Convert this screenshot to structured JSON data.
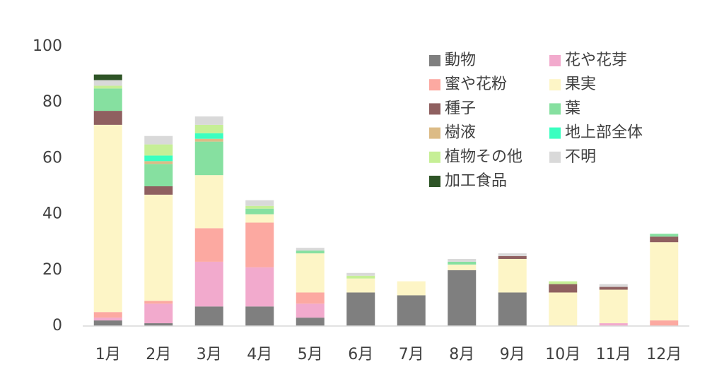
{
  "chart_data": {
    "type": "stacked_bar",
    "categories": [
      "1月",
      "2月",
      "3月",
      "4月",
      "5月",
      "6月",
      "7月",
      "8月",
      "9月",
      "10月",
      "11月",
      "12月"
    ],
    "series": [
      {
        "name": "動物",
        "color": "#7f7f7f",
        "values": [
          2,
          1,
          7,
          7,
          3,
          12,
          11,
          20,
          12,
          0,
          0,
          0
        ]
      },
      {
        "name": "花や花芽",
        "color": "#f2aacd",
        "values": [
          1,
          7,
          16,
          14,
          5,
          0,
          0,
          0,
          0,
          0,
          1,
          0
        ]
      },
      {
        "name": "蜜や花粉",
        "color": "#fca9a1",
        "values": [
          2,
          1,
          12,
          16,
          4,
          0,
          0,
          0,
          0,
          0,
          0,
          2
        ]
      },
      {
        "name": "果実",
        "color": "#fdf5c6",
        "values": [
          67,
          38,
          19,
          3,
          14,
          5,
          5,
          2,
          12,
          12,
          12,
          28
        ]
      },
      {
        "name": "種子",
        "color": "#8f6060",
        "values": [
          5,
          3,
          0,
          0,
          0,
          0,
          0,
          0,
          1,
          3,
          1,
          2
        ]
      },
      {
        "name": "葉",
        "color": "#86e0a0",
        "values": [
          8,
          8,
          12,
          2,
          1,
          0,
          0,
          1,
          0,
          0,
          0,
          1
        ]
      },
      {
        "name": "樹液",
        "color": "#dcbb86",
        "values": [
          0,
          1,
          1,
          0,
          0,
          0,
          0,
          0,
          0,
          0,
          0,
          0
        ]
      },
      {
        "name": "地上部全体",
        "color": "#3affc0",
        "values": [
          0,
          2,
          2,
          0,
          0,
          0,
          0,
          0,
          0,
          0,
          0,
          0
        ]
      },
      {
        "name": "植物その他",
        "color": "#c6ef96",
        "values": [
          1,
          4,
          3,
          1,
          0,
          1,
          0,
          0,
          0,
          1,
          0,
          0
        ]
      },
      {
        "name": "不明",
        "color": "#d9d9d9",
        "values": [
          2,
          3,
          3,
          2,
          1,
          1,
          0,
          1,
          1,
          0,
          1,
          0
        ]
      },
      {
        "name": "加工食品",
        "color": "#2e5426",
        "values": [
          2,
          0,
          0,
          0,
          0,
          0,
          0,
          0,
          0,
          0,
          0,
          0
        ]
      }
    ],
    "ylim": [
      0,
      100
    ],
    "yticks": [
      0,
      20,
      40,
      60,
      80,
      100
    ],
    "grid": false,
    "legend": "top-right"
  }
}
